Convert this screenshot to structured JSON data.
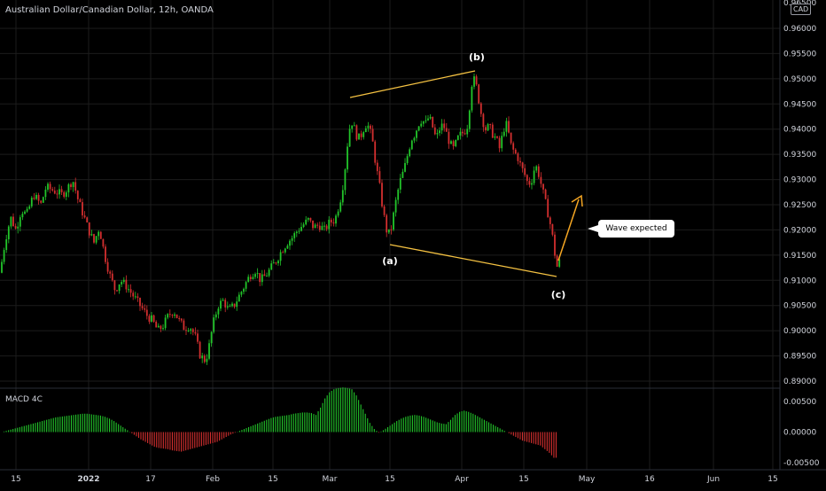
{
  "header": {
    "title": "Australian Dollar/Canadian Dollar, 12h, OANDA",
    "currency": "CAD"
  },
  "macd_label": "MACD 4C",
  "callout_text": "Wave expected",
  "wave_labels": {
    "a": "(a)",
    "b": "(b)",
    "c": "(c)"
  },
  "colors": {
    "up": "#26a69a",
    "up_bright": "#22c52a",
    "down": "#d32f2f",
    "trend": "#f5c242",
    "arrow": "#f5a623",
    "grid": "#1c1c1c"
  },
  "chart_data": {
    "type": "candlestick",
    "price_axis": {
      "ticks": [
        "0.96000",
        "0.95500",
        "0.95000",
        "0.94500",
        "0.94000",
        "0.93500",
        "0.93000",
        "0.92500",
        "0.92000",
        "0.91500",
        "0.91000",
        "0.90500",
        "0.90000",
        "0.89500",
        "0.89000"
      ],
      "range": [
        0.888,
        0.965
      ]
    },
    "macd_axis": {
      "ticks": [
        "0.00500",
        "0.00000",
        "-0.00500"
      ],
      "range": [
        -0.006,
        0.0085
      ]
    },
    "x_axis": {
      "ticks": [
        "15",
        "2022",
        "17",
        "Feb",
        "15",
        "Mar",
        "15",
        "Apr",
        "15",
        "May",
        "16",
        "Jun",
        "15"
      ]
    },
    "price_path": [
      [
        0,
        0.9115
      ],
      [
        6,
        0.918
      ],
      [
        12,
        0.9225
      ],
      [
        18,
        0.92
      ],
      [
        24,
        0.924
      ],
      [
        30,
        0.923
      ],
      [
        38,
        0.927
      ],
      [
        46,
        0.925
      ],
      [
        52,
        0.9285
      ],
      [
        58,
        0.928
      ],
      [
        64,
        0.9275
      ],
      [
        70,
        0.927
      ],
      [
        76,
        0.9282
      ],
      [
        82,
        0.93
      ],
      [
        88,
        0.926
      ],
      [
        94,
        0.923
      ],
      [
        100,
        0.92
      ],
      [
        106,
        0.9175
      ],
      [
        112,
        0.9205
      ],
      [
        118,
        0.915
      ],
      [
        124,
        0.911
      ],
      [
        130,
        0.908
      ],
      [
        136,
        0.91
      ],
      [
        142,
        0.909
      ],
      [
        148,
        0.9075
      ],
      [
        154,
        0.906
      ],
      [
        160,
        0.9045
      ],
      [
        166,
        0.903
      ],
      [
        172,
        0.902
      ],
      [
        178,
        0.9
      ],
      [
        184,
        0.901
      ],
      [
        190,
        0.903
      ],
      [
        196,
        0.904
      ],
      [
        202,
        0.902
      ],
      [
        208,
        0.9005
      ],
      [
        214,
        0.901
      ],
      [
        220,
        0.899
      ],
      [
        226,
        0.895
      ],
      [
        232,
        0.894
      ],
      [
        236,
        0.897
      ],
      [
        240,
        0.901
      ],
      [
        246,
        0.905
      ],
      [
        252,
        0.906
      ],
      [
        258,
        0.904
      ],
      [
        264,
        0.905
      ],
      [
        270,
        0.907
      ],
      [
        276,
        0.909
      ],
      [
        282,
        0.911
      ],
      [
        288,
        0.912
      ],
      [
        294,
        0.91
      ],
      [
        300,
        0.911
      ],
      [
        306,
        0.9125
      ],
      [
        312,
        0.914
      ],
      [
        318,
        0.916
      ],
      [
        324,
        0.9175
      ],
      [
        330,
        0.9185
      ],
      [
        336,
        0.92
      ],
      [
        342,
        0.921
      ],
      [
        348,
        0.922
      ],
      [
        354,
        0.9205
      ],
      [
        360,
        0.921
      ],
      [
        366,
        0.92
      ],
      [
        372,
        0.9215
      ],
      [
        378,
        0.922
      ],
      [
        384,
        0.926
      ],
      [
        388,
        0.93
      ],
      [
        392,
        0.937
      ],
      [
        396,
        0.942
      ],
      [
        400,
        0.94
      ],
      [
        404,
        0.938
      ],
      [
        408,
        0.939
      ],
      [
        412,
        0.941
      ],
      [
        416,
        0.9405
      ],
      [
        420,
        0.938
      ],
      [
        424,
        0.933
      ],
      [
        428,
        0.929
      ],
      [
        432,
        0.924
      ],
      [
        436,
        0.92
      ],
      [
        440,
        0.919
      ],
      [
        444,
        0.923
      ],
      [
        448,
        0.927
      ],
      [
        452,
        0.93
      ],
      [
        456,
        0.932
      ],
      [
        460,
        0.935
      ],
      [
        464,
        0.938
      ],
      [
        468,
        0.939
      ],
      [
        472,
        0.941
      ],
      [
        476,
        0.942
      ],
      [
        480,
        0.941
      ],
      [
        484,
        0.9425
      ],
      [
        488,
        0.9405
      ],
      [
        492,
        0.938
      ],
      [
        496,
        0.94
      ],
      [
        500,
        0.941
      ],
      [
        504,
        0.939
      ],
      [
        508,
        0.937
      ],
      [
        512,
        0.936
      ],
      [
        516,
        0.938
      ],
      [
        520,
        0.939
      ],
      [
        524,
        0.9395
      ],
      [
        528,
        0.941
      ],
      [
        532,
        0.949
      ],
      [
        536,
        0.95
      ],
      [
        540,
        0.946
      ],
      [
        544,
        0.942
      ],
      [
        548,
        0.94
      ],
      [
        552,
        0.9405
      ],
      [
        556,
        0.939
      ],
      [
        560,
        0.938
      ],
      [
        564,
        0.936
      ],
      [
        568,
        0.94
      ],
      [
        572,
        0.941
      ],
      [
        576,
        0.937
      ],
      [
        580,
        0.9355
      ],
      [
        584,
        0.9345
      ],
      [
        588,
        0.9325
      ],
      [
        592,
        0.931
      ],
      [
        596,
        0.929
      ],
      [
        600,
        0.93
      ],
      [
        604,
        0.933
      ],
      [
        608,
        0.931
      ],
      [
        612,
        0.928
      ],
      [
        616,
        0.925
      ],
      [
        620,
        0.922
      ],
      [
        624,
        0.918
      ],
      [
        628,
        0.9125
      ],
      [
        632,
        0.914
      ]
    ],
    "macd_values": [
      0.0,
      0.0002,
      0.0004,
      0.0006,
      0.0008,
      0.001,
      0.0012,
      0.0014,
      0.0016,
      0.0018,
      0.002,
      0.0022,
      0.0024,
      0.0025,
      0.0026,
      0.0027,
      0.0028,
      0.0029,
      0.003,
      0.003,
      0.0029,
      0.0028,
      0.0027,
      0.0025,
      0.0022,
      0.0018,
      0.0013,
      0.0008,
      0.0003,
      -0.0002,
      -0.0007,
      -0.0012,
      -0.0016,
      -0.002,
      -0.0024,
      -0.0026,
      -0.0027,
      -0.0028,
      -0.003,
      -0.0031,
      -0.0032,
      -0.003,
      -0.0028,
      -0.0026,
      -0.0024,
      -0.0022,
      -0.002,
      -0.0018,
      -0.0016,
      -0.0012,
      -0.0008,
      -0.0004,
      -0.0001,
      0.0002,
      0.0005,
      0.0008,
      0.0011,
      0.0014,
      0.0017,
      0.002,
      0.0023,
      0.0025,
      0.0026,
      0.0027,
      0.0028,
      0.003,
      0.0031,
      0.0032,
      0.0032,
      0.0031,
      0.0028,
      0.004,
      0.0055,
      0.0065,
      0.007,
      0.0072,
      0.0073,
      0.0072,
      0.007,
      0.006,
      0.0045,
      0.003,
      0.0015,
      0.0005,
      -0.0001,
      0.0003,
      0.0008,
      0.0013,
      0.0018,
      0.0022,
      0.0025,
      0.0027,
      0.0028,
      0.0027,
      0.0025,
      0.0022,
      0.0019,
      0.0016,
      0.0014,
      0.0013,
      0.002,
      0.0028,
      0.0033,
      0.0035,
      0.0033,
      0.003,
      0.0026,
      0.0022,
      0.0018,
      0.0014,
      0.001,
      0.0006,
      0.0002,
      -0.0002,
      -0.0006,
      -0.001,
      -0.0014,
      -0.0016,
      -0.0018,
      -0.002,
      -0.0022,
      -0.0028,
      -0.0034,
      -0.0042
    ]
  }
}
